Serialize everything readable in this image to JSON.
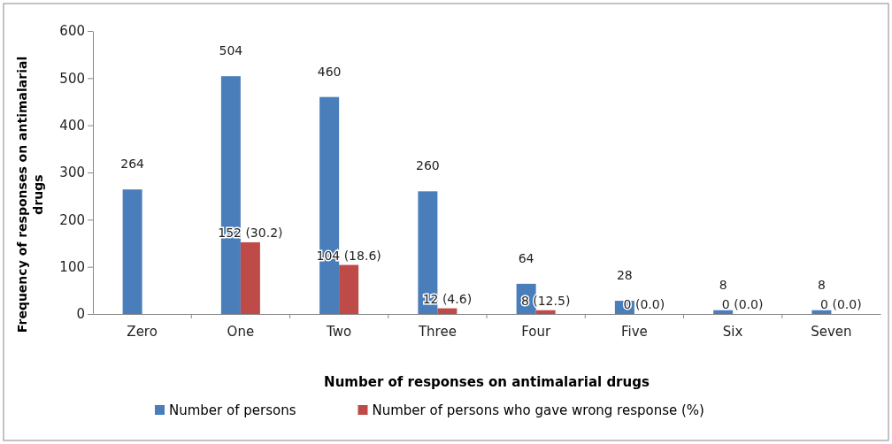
{
  "chart_data": {
    "type": "bar",
    "xlabel": "Number of responses on antimalarial drugs",
    "ylabel": "Frequency of responses on antimalarial drugs",
    "categories": [
      "Zero",
      "One",
      "Two",
      "Three",
      "Four",
      "Five",
      "Six",
      "Seven"
    ],
    "series": [
      {
        "name": "Number of persons",
        "color": "#4a7ebb",
        "values": [
          264,
          504,
          460,
          260,
          64,
          28,
          8,
          8
        ],
        "value_labels": [
          "264",
          "504",
          "460",
          "260",
          "64",
          "28",
          "8",
          "8"
        ]
      },
      {
        "name": "Number of persons who gave wrong response (%)",
        "color": "#be4b48",
        "values": [
          null,
          152,
          104,
          12,
          8,
          0,
          0,
          0
        ],
        "value_labels": [
          null,
          "152 (30.2)",
          "104 (18.6)",
          "12 (4.6)",
          "8 (12.5)",
          "0 (0.0)",
          "0 (0.0)",
          "0 (0.0)"
        ]
      }
    ],
    "ylim": [
      0,
      600
    ],
    "yticks": [
      0,
      100,
      200,
      300,
      400,
      500,
      600
    ],
    "legend": "bottom"
  }
}
